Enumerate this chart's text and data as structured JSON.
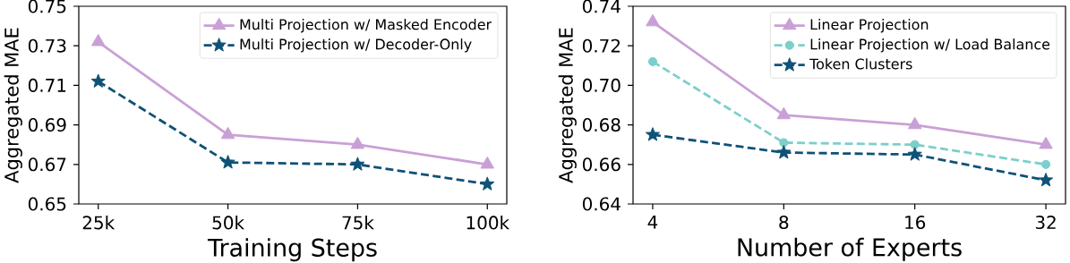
{
  "chart_data": [
    {
      "type": "line",
      "categories": [
        "25k",
        "50k",
        "75k",
        "100k"
      ],
      "xlabel": "Training Steps",
      "ylabel": "Aggregated MAE",
      "ylim": [
        0.65,
        0.75
      ],
      "yticks": [
        0.65,
        0.67,
        0.69,
        0.71,
        0.73,
        0.75
      ],
      "legend": "top right",
      "series": [
        {
          "name": "Multi Projection w/ Masked Encoder",
          "color": "#c9a0d6",
          "values": [
            0.732,
            0.685,
            0.68,
            0.67
          ],
          "marker": "triangle",
          "line_style": "solid"
        },
        {
          "name": "Multi Projection w/ Decoder-Only",
          "color": "#0f5177",
          "values": [
            0.712,
            0.671,
            0.67,
            0.66
          ],
          "marker": "star",
          "line_style": "dashed"
        }
      ]
    },
    {
      "type": "line",
      "categories": [
        "4",
        "8",
        "16",
        "32"
      ],
      "xlabel": "Number of Experts",
      "ylabel": "Aggregated MAE",
      "ylim": [
        0.64,
        0.74
      ],
      "yticks": [
        0.64,
        0.66,
        0.68,
        {
          "value": 0.7,
          "label": "0.70"
        },
        0.72,
        0.74
      ],
      "legend": "top right",
      "series": [
        {
          "name": "Linear Projection",
          "color": "#c9a0d6",
          "values": [
            0.732,
            0.685,
            0.68,
            0.67
          ],
          "marker": "triangle",
          "line_style": "solid"
        },
        {
          "name": "Linear Projection w/ Load Balance",
          "color": "#7ccfca",
          "values": [
            0.712,
            0.671,
            0.67,
            0.66
          ],
          "marker": "circle",
          "line_style": "dashed"
        },
        {
          "name": "Token Clusters",
          "color": "#0f5177",
          "values": [
            0.675,
            0.666,
            0.665,
            0.652
          ],
          "marker": "star",
          "line_style": "dashed"
        }
      ]
    }
  ]
}
